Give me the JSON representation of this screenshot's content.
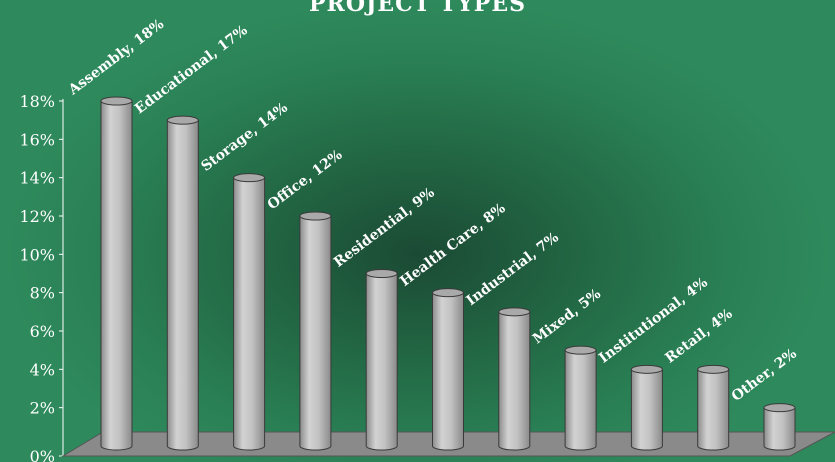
{
  "chart_data": {
    "type": "bar",
    "title": "PROJECT TYPES",
    "categories": [
      "Assembly",
      "Educational",
      "Storage",
      "Office",
      "Residential",
      "Health Care",
      "Industrial",
      "Mixed",
      "Institutional",
      "Retail",
      "Other"
    ],
    "values": [
      18,
      17,
      14,
      12,
      9,
      8,
      7,
      5,
      4,
      4,
      2
    ],
    "data_labels": [
      "Assembly, 18%",
      "Educational, 17%",
      "Storage, 14%",
      "Office, 12%",
      "Residential, 9%",
      "Health Care, 8%",
      "Industrial, 7%",
      "Mixed, 5%",
      "Institutional, 4%",
      "Retail, 4%",
      "Other, 2%"
    ],
    "yticks": [
      "0%",
      "2%",
      "4%",
      "6%",
      "8%",
      "10%",
      "12%",
      "14%",
      "16%",
      "18%"
    ],
    "ylim": [
      0,
      18
    ],
    "xlabel": "",
    "ylabel": "",
    "grid": false,
    "legend": "none",
    "bar_color": "#b8b8b8",
    "floor_color": "#8a8a8a",
    "background_color": "#2a7a50"
  }
}
